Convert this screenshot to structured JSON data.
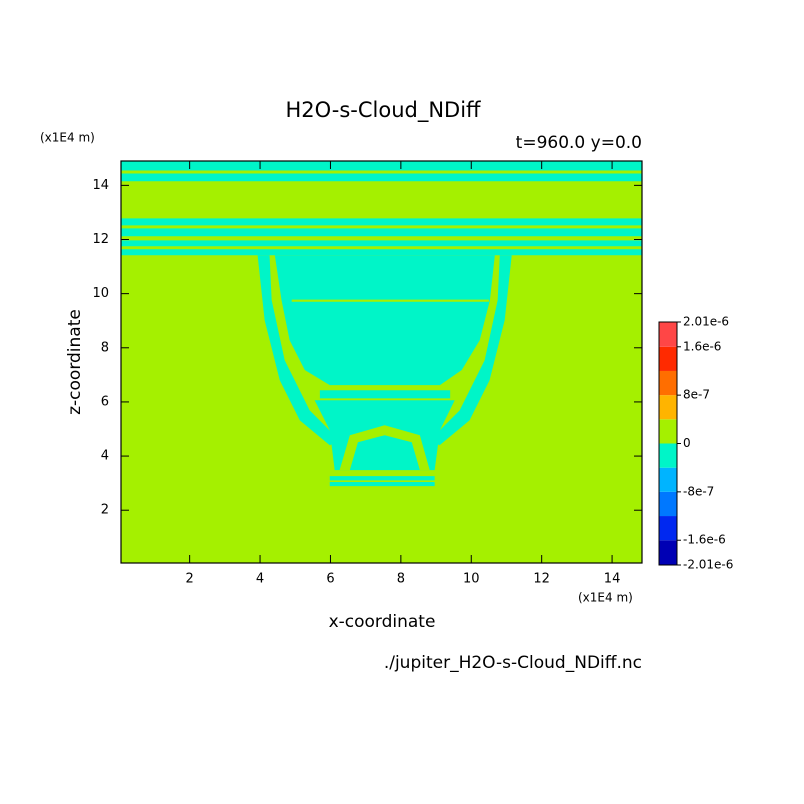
{
  "chart_data": {
    "type": "contour",
    "title": "H2O-s-Cloud_NDiff",
    "subtitle": "t=960.0 y=0.0",
    "x_label": "x-coordinate",
    "y_label": "z-coordinate",
    "x_unit": "(x1E4 m)",
    "y_unit": "(x1E4 m)",
    "footer": "./jupiter_H2O-s-Cloud_NDiff.nc",
    "xlim": [
      0.05,
      14.85
    ],
    "ylim": [
      0.05,
      14.9
    ],
    "xticks": [
      2,
      4,
      6,
      8,
      10,
      12,
      14
    ],
    "yticks": [
      2,
      4,
      6,
      8,
      10,
      12,
      14
    ],
    "colorbar": {
      "levels": [
        -2.01e-06,
        -1.6e-06,
        -1.2e-06,
        -8e-07,
        -4e-07,
        0,
        4e-07,
        8e-07,
        1.2e-06,
        1.6e-06,
        2.01e-06
      ],
      "colors": [
        "#0000b4",
        "#0028f0",
        "#0078ff",
        "#00b4ff",
        "#00f5c8",
        "#a5f000",
        "#ffb400",
        "#ff6e00",
        "#ff2a00",
        "#ff4646"
      ],
      "ticks": [
        {
          "value": 2.01e-06,
          "label": "2.01e-6"
        },
        {
          "value": 1.6e-06,
          "label": "1.6e-6"
        },
        {
          "value": 8e-07,
          "label": "8e-7"
        },
        {
          "value": 0,
          "label": "0"
        },
        {
          "value": -8e-07,
          "label": "-8e-7"
        },
        {
          "value": -1.6e-06,
          "label": "-1.6e-6"
        },
        {
          "value": -2.01e-06,
          "label": "-2.01e-6"
        }
      ]
    },
    "regions": [
      {
        "value": 2e-07,
        "x": [
          0.05,
          14.85,
          14.85,
          0.05
        ],
        "y": [
          0.05,
          0.05,
          14.9,
          14.9
        ]
      },
      {
        "value": -2e-07,
        "x": [
          0.05,
          14.85,
          14.85,
          0.05
        ],
        "y": [
          14.55,
          14.55,
          14.9,
          14.9
        ]
      },
      {
        "value": -2e-07,
        "x": [
          0.05,
          14.85,
          14.85,
          0.05
        ],
        "y": [
          14.15,
          14.15,
          14.44,
          14.44
        ]
      },
      {
        "value": -2e-07,
        "x": [
          0.05,
          14.85,
          14.85,
          0.05
        ],
        "y": [
          12.52,
          12.52,
          12.78,
          12.78
        ]
      },
      {
        "value": -2e-07,
        "x": [
          0.05,
          14.85,
          14.85,
          0.05
        ],
        "y": [
          12.12,
          12.12,
          12.41,
          12.41
        ]
      },
      {
        "value": -2e-07,
        "x": [
          0.05,
          14.85,
          14.85,
          0.05
        ],
        "y": [
          11.75,
          11.75,
          11.97,
          11.97
        ]
      },
      {
        "value": -2e-07,
        "x": [
          0.05,
          14.85,
          14.85,
          0.05
        ],
        "y": [
          11.42,
          11.42,
          11.64,
          11.64
        ]
      },
      {
        "value": -2e-07,
        "x": [
          4.42,
          10.67,
          10.53,
          10.24,
          9.73,
          9.11,
          5.98,
          5.27,
          4.84,
          4.61
        ],
        "y": [
          11.42,
          11.42,
          9.76,
          8.28,
          7.18,
          6.62,
          6.62,
          7.18,
          8.28,
          9.76
        ]
      },
      {
        "value": 2e-07,
        "x": [
          4.9,
          10.5,
          10.5,
          4.9
        ],
        "y": [
          9.7,
          9.7,
          9.78,
          9.78
        ]
      },
      {
        "value": -2e-07,
        "x": [
          3.93,
          4.27,
          4.33,
          4.7,
          5.41,
          6.26,
          5.98,
          5.13,
          4.56,
          4.13
        ],
        "y": [
          11.42,
          11.42,
          9.76,
          7.54,
          5.69,
          4.58,
          4.4,
          5.32,
          6.8,
          9.02
        ]
      },
      {
        "value": -2e-07,
        "x": [
          11.15,
          10.81,
          10.75,
          10.38,
          9.67,
          8.82,
          9.1,
          9.95,
          10.52,
          10.95
        ],
        "y": [
          11.42,
          11.42,
          9.76,
          7.54,
          5.69,
          4.58,
          4.4,
          5.32,
          6.8,
          9.02
        ]
      },
      {
        "value": -2e-07,
        "x": [
          5.7,
          9.4,
          9.4,
          5.7
        ],
        "y": [
          6.13,
          6.13,
          6.43,
          6.43
        ]
      },
      {
        "value": -2e-07,
        "x": [
          5.55,
          9.53,
          9.11,
          8.96,
          6.12,
          5.98
        ],
        "y": [
          6.06,
          6.06,
          4.96,
          3.48,
          3.48,
          4.96
        ]
      },
      {
        "value": 2e-07,
        "x": [
          6.26,
          6.55,
          7.54,
          8.54,
          8.82,
          8.54,
          8.31,
          7.54,
          6.78,
          6.55
        ],
        "y": [
          3.48,
          4.77,
          5.14,
          4.77,
          3.48,
          3.48,
          4.51,
          4.77,
          4.51,
          3.48
        ]
      },
      {
        "value": -2e-07,
        "x": [
          5.98,
          8.96,
          8.96,
          5.98
        ],
        "y": [
          3.1,
          3.1,
          3.26,
          3.26
        ]
      },
      {
        "value": -2e-07,
        "x": [
          5.98,
          8.96,
          8.96,
          5.98
        ],
        "y": [
          2.89,
          2.89,
          3.04,
          3.04
        ]
      }
    ]
  }
}
